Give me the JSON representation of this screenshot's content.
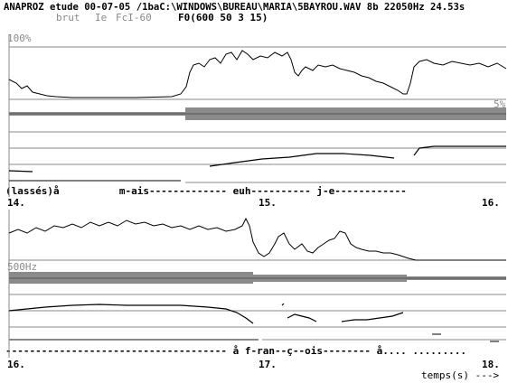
{
  "header": {
    "title_line": "ANAPROZ etude 00-07-05 /1baC:\\WINDOWS\\BUREAU\\MARIA\\5BAYROU.WAV 8b 22050Hz 24.53s",
    "mode_brut": "brut",
    "mode_ie": "Ie",
    "mode_fci": "FcI-60",
    "f0_params": "F0(600 50 3 15)"
  },
  "panel1": {
    "scale_top": "100%",
    "scale_mid": "5%",
    "transcription": "(lassés)å          m-ais------------- euh---------- j-e------------",
    "time_start": "14.",
    "time_mid": "15.",
    "time_end": "16."
  },
  "panel2": {
    "scale_mid": "500Hz",
    "transcription": "------------------------------------- å f-ran--ç--ois-------- å.... .........",
    "time_start": "16.",
    "time_mid": "17.",
    "time_end": "18."
  },
  "footer": {
    "axis_label": "temps(s) --->"
  },
  "colors": {
    "background": "#ffffff",
    "trace": "#000000",
    "gray": "#8a8a8a"
  }
}
